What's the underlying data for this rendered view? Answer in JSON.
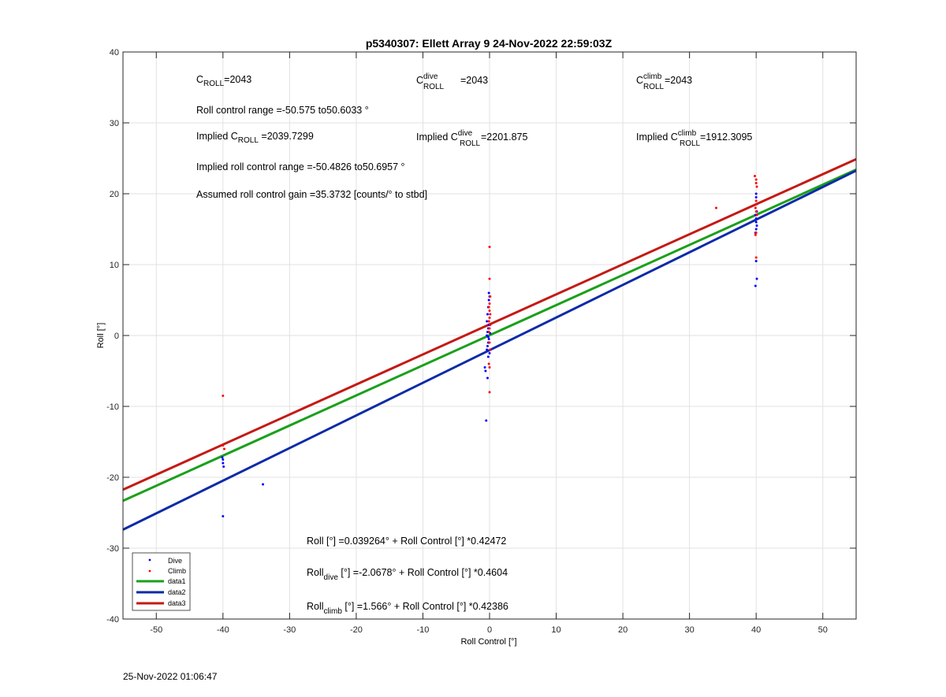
{
  "chart_data": {
    "type": "scatter",
    "title": "p5340307: Ellett Array 9 24-Nov-2022 22:59:03Z",
    "xlabel": "Roll Control [°]",
    "ylabel": "Roll [°]",
    "xlim": [
      -55,
      55
    ],
    "ylim": [
      -40,
      40
    ],
    "xticks": [
      -50,
      -40,
      -30,
      -20,
      -10,
      0,
      10,
      20,
      30,
      40,
      50
    ],
    "yticks": [
      -40,
      -30,
      -20,
      -10,
      0,
      10,
      20,
      30,
      40
    ],
    "grid": true,
    "legend_position": "bottom-left",
    "colors": {
      "dive": "#0000ff",
      "climb": "#ff0000",
      "data1": "#1aa01a",
      "data2": "#0c2aa8",
      "data3": "#c41a14",
      "grid": "#e2e2e2"
    },
    "series": [
      {
        "name": "Dive",
        "kind": "points",
        "points": [
          [
            -40,
            -17.5
          ],
          [
            -40,
            -18
          ],
          [
            -39.9,
            -18.5
          ],
          [
            -40.1,
            -17.2
          ],
          [
            -40,
            -25.5
          ],
          [
            -34,
            -21
          ],
          [
            -0.5,
            -12
          ],
          [
            -0.6,
            -5
          ],
          [
            -0.7,
            -4.5
          ],
          [
            -0.3,
            -6
          ],
          [
            -0.2,
            -3
          ],
          [
            -0.4,
            -2
          ],
          [
            -0.3,
            -1.5
          ],
          [
            -0.2,
            -1
          ],
          [
            -0.1,
            -0.5
          ],
          [
            -0.4,
            0
          ],
          [
            -0.3,
            0.5
          ],
          [
            -0.2,
            1
          ],
          [
            -0.1,
            1.5
          ],
          [
            -0.4,
            2
          ],
          [
            -0.3,
            3
          ],
          [
            -0.2,
            4
          ],
          [
            -0.1,
            5
          ],
          [
            0,
            5.5
          ],
          [
            -0.1,
            6
          ],
          [
            0,
            -2.5
          ],
          [
            -0.2,
            -0.2
          ],
          [
            0.1,
            0.3
          ],
          [
            40,
            19.5
          ],
          [
            40,
            18.5
          ],
          [
            40.1,
            17.5
          ],
          [
            39.9,
            17
          ],
          [
            40,
            16.5
          ],
          [
            40,
            16
          ],
          [
            40.1,
            15.5
          ],
          [
            40,
            15
          ],
          [
            39.9,
            14.5
          ],
          [
            40,
            20
          ],
          [
            40,
            10.5
          ],
          [
            40.1,
            8
          ],
          [
            39.9,
            7
          ]
        ]
      },
      {
        "name": "Climb",
        "kind": "points",
        "points": [
          [
            -40,
            -8.5
          ],
          [
            -40,
            -15.5
          ],
          [
            -39.8,
            -16
          ],
          [
            0,
            12.5
          ],
          [
            0,
            8
          ],
          [
            0.1,
            5.5
          ],
          [
            0,
            4.5
          ],
          [
            -0.1,
            4
          ],
          [
            0,
            3.5
          ],
          [
            0.1,
            3
          ],
          [
            0,
            2.5
          ],
          [
            -0.1,
            2
          ],
          [
            0.1,
            1.5
          ],
          [
            0,
            1
          ],
          [
            -0.1,
            0.5
          ],
          [
            0,
            -1
          ],
          [
            0.1,
            -2
          ],
          [
            -0.1,
            -4
          ],
          [
            0,
            -4.5
          ],
          [
            0,
            -8
          ],
          [
            34,
            18
          ],
          [
            39.8,
            22.5
          ],
          [
            40,
            22
          ],
          [
            40,
            21.5
          ],
          [
            40.1,
            21
          ],
          [
            40,
            19
          ],
          [
            40,
            18.5
          ],
          [
            39.9,
            18
          ],
          [
            40,
            17.5
          ],
          [
            40.1,
            17
          ],
          [
            40,
            14.5
          ],
          [
            39.9,
            14.2
          ],
          [
            40,
            11
          ]
        ]
      },
      {
        "name": "data1",
        "kind": "line",
        "intercept": 0.039264,
        "slope": 0.42472
      },
      {
        "name": "data2",
        "kind": "line",
        "intercept": -2.0678,
        "slope": 0.4604
      },
      {
        "name": "data3",
        "kind": "line",
        "intercept": 1.566,
        "slope": 0.42386
      }
    ],
    "annotations": {
      "c_roll": {
        "base": "C",
        "sub": "ROLL",
        "value": "=2043"
      },
      "c_roll_dive": {
        "base": "C",
        "sup": "dive",
        "sub": "ROLL",
        "value": " =2043"
      },
      "c_roll_climb": {
        "base": "C",
        "sup": "climb",
        "sub": "ROLL",
        "value": " =2043"
      },
      "roll_control_range": "Roll control range =-50.575 to50.6033 °",
      "implied_c_roll": {
        "prefix": "Implied C",
        "sub": "ROLL",
        "value": " =2039.7299"
      },
      "implied_c_roll_dive": {
        "prefix": "Implied C",
        "sup": "dive",
        "sub": "ROLL",
        "value": "=2201.875"
      },
      "implied_c_roll_climb": {
        "prefix": "Implied C",
        "sup": "climb",
        "sub": "ROLL",
        "value": " =1912.3095"
      },
      "implied_roll_range": "Implied roll control range =-50.4826 to50.6957 °",
      "gain": "Assumed roll control gain =35.3732 [counts/° to stbd]",
      "fit_all": "Roll [°] =0.039264° + Roll Control [°] *0.42472",
      "fit_dive": {
        "base": "Roll",
        "sub": "dive",
        "rest": " [°] =-2.0678° + Roll Control [°] *0.4604"
      },
      "fit_climb": {
        "base": "Roll",
        "sub": "climb",
        "rest": " [°] =1.566° + Roll Control [°] *0.42386"
      }
    }
  },
  "footer_timestamp": "25-Nov-2022 01:06:47"
}
